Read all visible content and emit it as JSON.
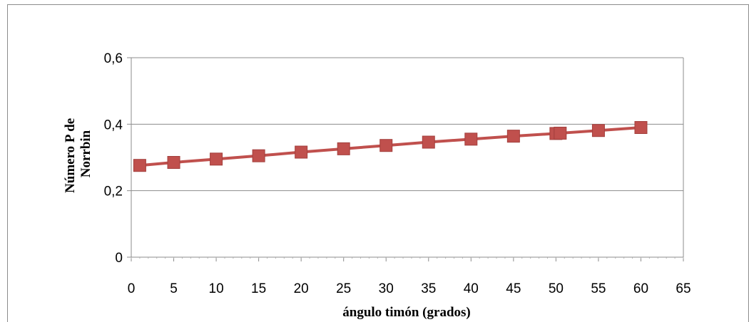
{
  "chart_data": {
    "type": "line",
    "title": "",
    "xlabel": "ángulo timón (grados)",
    "ylabel_lines": [
      "Número P de",
      "Norrbin"
    ],
    "xlim": [
      0,
      65
    ],
    "ylim": [
      0,
      0.6
    ],
    "x_ticks": [
      "0",
      "5",
      "10",
      "15",
      "20",
      "25",
      "30",
      "35",
      "40",
      "45",
      "50",
      "55",
      "60",
      "65"
    ],
    "x_tick_values": [
      0,
      5,
      10,
      15,
      20,
      25,
      30,
      35,
      40,
      45,
      50,
      55,
      60,
      65
    ],
    "y_ticks": [
      "0",
      "0,2",
      "0,4",
      "0,6"
    ],
    "y_tick_values": [
      0,
      0.2,
      0.4,
      0.6
    ],
    "grid": "horizontal",
    "legend": "none",
    "series": [
      {
        "color": "#c0504d",
        "marker_color": "#c0504d",
        "marker": "square",
        "x": [
          1,
          5,
          10,
          15,
          20,
          25,
          30,
          35,
          40,
          45,
          50,
          50.5,
          55,
          60
        ],
        "y": [
          0.276,
          0.285,
          0.295,
          0.305,
          0.316,
          0.326,
          0.336,
          0.346,
          0.355,
          0.364,
          0.372,
          0.373,
          0.381,
          0.39
        ]
      }
    ]
  }
}
